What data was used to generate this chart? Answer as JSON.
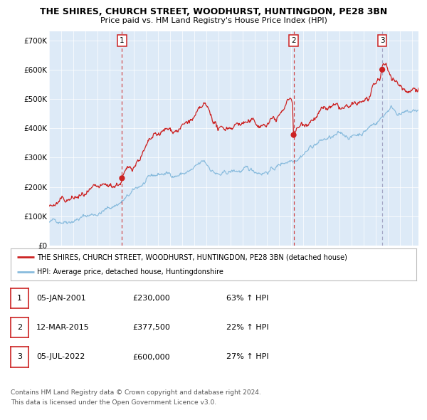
{
  "title": "THE SHIRES, CHURCH STREET, WOODHURST, HUNTINGDON, PE28 3BN",
  "subtitle": "Price paid vs. HM Land Registry's House Price Index (HPI)",
  "ylabel_ticks": [
    "£0",
    "£100K",
    "£200K",
    "£300K",
    "£400K",
    "£500K",
    "£600K",
    "£700K"
  ],
  "ytick_vals": [
    0,
    100000,
    200000,
    300000,
    400000,
    500000,
    600000,
    700000
  ],
  "ylim": [
    0,
    730000
  ],
  "xlim_start": 1995.0,
  "xlim_end": 2025.5,
  "sale_color": "#cc2222",
  "hpi_color": "#88bbdd",
  "bg_color": "#ddeaf7",
  "grid_color": "#ffffff",
  "legend_line1": "THE SHIRES, CHURCH STREET, WOODHURST, HUNTINGDON, PE28 3BN (detached house)",
  "legend_line2": "HPI: Average price, detached house, Huntingdonshire",
  "sale_events": [
    {
      "label": "1",
      "date_decimal": 2001.02,
      "price": 230000
    },
    {
      "label": "2",
      "date_decimal": 2015.19,
      "price": 377500
    },
    {
      "label": "3",
      "date_decimal": 2022.51,
      "price": 600000
    }
  ],
  "table_rows": [
    [
      "1",
      "05-JAN-2001",
      "£230,000",
      "63% ↑ HPI"
    ],
    [
      "2",
      "12-MAR-2015",
      "£377,500",
      "22% ↑ HPI"
    ],
    [
      "3",
      "05-JUL-2022",
      "£600,000",
      "27% ↑ HPI"
    ]
  ],
  "footer_line1": "Contains HM Land Registry data © Crown copyright and database right 2024.",
  "footer_line2": "This data is licensed under the Open Government Licence v3.0.",
  "hpi_key": [
    [
      1995.0,
      80000
    ],
    [
      1995.5,
      83000
    ],
    [
      1996.0,
      88000
    ],
    [
      1996.5,
      92000
    ],
    [
      1997.0,
      96000
    ],
    [
      1997.5,
      99000
    ],
    [
      1998.0,
      103000
    ],
    [
      1998.5,
      107000
    ],
    [
      1999.0,
      112000
    ],
    [
      1999.5,
      120000
    ],
    [
      2000.0,
      128000
    ],
    [
      2000.5,
      140000
    ],
    [
      2001.0,
      152000
    ],
    [
      2001.5,
      165000
    ],
    [
      2002.0,
      182000
    ],
    [
      2002.5,
      200000
    ],
    [
      2003.0,
      215000
    ],
    [
      2003.5,
      228000
    ],
    [
      2004.0,
      238000
    ],
    [
      2004.5,
      243000
    ],
    [
      2005.0,
      241000
    ],
    [
      2005.5,
      242000
    ],
    [
      2006.0,
      247000
    ],
    [
      2006.5,
      252000
    ],
    [
      2007.0,
      258000
    ],
    [
      2007.5,
      272000
    ],
    [
      2007.8,
      280000
    ],
    [
      2008.0,
      272000
    ],
    [
      2008.5,
      256000
    ],
    [
      2009.0,
      241000
    ],
    [
      2009.3,
      238000
    ],
    [
      2009.5,
      240000
    ],
    [
      2010.0,
      248000
    ],
    [
      2010.5,
      252000
    ],
    [
      2011.0,
      254000
    ],
    [
      2011.5,
      252000
    ],
    [
      2012.0,
      252000
    ],
    [
      2012.5,
      254000
    ],
    [
      2013.0,
      258000
    ],
    [
      2013.5,
      265000
    ],
    [
      2014.0,
      275000
    ],
    [
      2014.5,
      288000
    ],
    [
      2015.0,
      298000
    ],
    [
      2015.5,
      310000
    ],
    [
      2016.0,
      325000
    ],
    [
      2016.5,
      338000
    ],
    [
      2017.0,
      352000
    ],
    [
      2017.5,
      360000
    ],
    [
      2018.0,
      365000
    ],
    [
      2018.5,
      368000
    ],
    [
      2019.0,
      372000
    ],
    [
      2019.5,
      373000
    ],
    [
      2020.0,
      372000
    ],
    [
      2020.5,
      380000
    ],
    [
      2021.0,
      392000
    ],
    [
      2021.5,
      408000
    ],
    [
      2022.0,
      422000
    ],
    [
      2022.5,
      440000
    ],
    [
      2023.0,
      468000
    ],
    [
      2023.3,
      475000
    ],
    [
      2023.5,
      468000
    ],
    [
      2024.0,
      455000
    ],
    [
      2024.5,
      450000
    ],
    [
      2025.0,
      452000
    ],
    [
      2025.5,
      458000
    ]
  ],
  "sale_key": [
    [
      1995.0,
      135000
    ],
    [
      1995.5,
      140000
    ],
    [
      1996.0,
      147000
    ],
    [
      1996.5,
      152000
    ],
    [
      1997.0,
      158000
    ],
    [
      1997.5,
      163000
    ],
    [
      1998.0,
      168000
    ],
    [
      1998.5,
      173000
    ],
    [
      1999.0,
      178000
    ],
    [
      1999.5,
      186000
    ],
    [
      2000.0,
      194000
    ],
    [
      2000.5,
      205000
    ],
    [
      2001.0,
      218000
    ],
    [
      2001.02,
      230000
    ],
    [
      2001.5,
      252000
    ],
    [
      2002.0,
      275000
    ],
    [
      2002.5,
      305000
    ],
    [
      2003.0,
      330000
    ],
    [
      2003.5,
      355000
    ],
    [
      2004.0,
      370000
    ],
    [
      2004.5,
      382000
    ],
    [
      2005.0,
      388000
    ],
    [
      2005.5,
      395000
    ],
    [
      2006.0,
      405000
    ],
    [
      2006.5,
      418000
    ],
    [
      2007.0,
      432000
    ],
    [
      2007.5,
      452000
    ],
    [
      2007.8,
      468000
    ],
    [
      2008.0,
      458000
    ],
    [
      2008.3,
      440000
    ],
    [
      2008.7,
      418000
    ],
    [
      2009.0,
      392000
    ],
    [
      2009.3,
      388000
    ],
    [
      2009.5,
      395000
    ],
    [
      2010.0,
      408000
    ],
    [
      2010.5,
      418000
    ],
    [
      2011.0,
      422000
    ],
    [
      2011.5,
      418000
    ],
    [
      2012.0,
      412000
    ],
    [
      2012.5,
      408000
    ],
    [
      2013.0,
      415000
    ],
    [
      2013.5,
      428000
    ],
    [
      2014.0,
      442000
    ],
    [
      2014.3,
      458000
    ],
    [
      2014.6,
      478000
    ],
    [
      2014.9,
      505000
    ],
    [
      2015.0,
      498000
    ],
    [
      2015.1,
      480000
    ],
    [
      2015.19,
      377500
    ],
    [
      2015.3,
      385000
    ],
    [
      2015.5,
      398000
    ],
    [
      2016.0,
      418000
    ],
    [
      2016.5,
      435000
    ],
    [
      2017.0,
      448000
    ],
    [
      2017.5,
      458000
    ],
    [
      2018.0,
      462000
    ],
    [
      2018.3,
      468000
    ],
    [
      2018.7,
      462000
    ],
    [
      2019.0,
      460000
    ],
    [
      2019.5,
      462000
    ],
    [
      2020.0,
      462000
    ],
    [
      2020.5,
      472000
    ],
    [
      2021.0,
      488000
    ],
    [
      2021.5,
      505000
    ],
    [
      2022.0,
      538000
    ],
    [
      2022.3,
      558000
    ],
    [
      2022.51,
      600000
    ],
    [
      2022.7,
      608000
    ],
    [
      2022.9,
      595000
    ],
    [
      2023.0,
      588000
    ],
    [
      2023.3,
      578000
    ],
    [
      2023.5,
      568000
    ],
    [
      2024.0,
      545000
    ],
    [
      2024.5,
      532000
    ],
    [
      2025.0,
      540000
    ],
    [
      2025.5,
      548000
    ]
  ]
}
